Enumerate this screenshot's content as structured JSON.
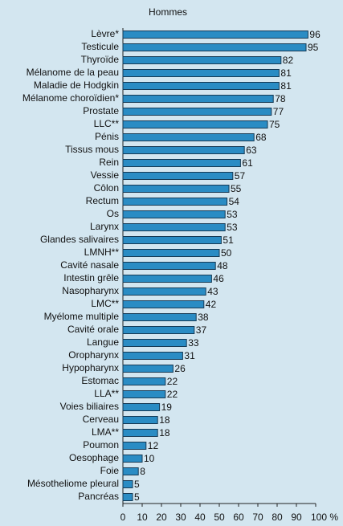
{
  "chart_data": {
    "type": "barh",
    "title": "Hommes",
    "categories": [
      "Lèvre*",
      "Testicule",
      "Thyroïde",
      "Mélanome de la peau",
      "Maladie de Hodgkin",
      "Mélanome choroïdien*",
      "Prostate",
      "LLC**",
      "Pénis",
      "Tissus mous",
      "Rein",
      "Vessie",
      "Côlon",
      "Rectum",
      "Os",
      "Larynx",
      "Glandes salivaires",
      "LMNH**",
      "Cavité nasale",
      "Intestin grêle",
      "Nasopharynx",
      "LMC**",
      "Myélome multiple",
      "Cavité orale",
      "Langue",
      "Oropharynx",
      "Hypopharynx",
      "Estomac",
      "LLA**",
      "Voies biliaires",
      "Cerveau",
      "LMA**",
      "Poumon",
      "Oesophage",
      "Foie",
      "Mésotheliome pleural",
      "Pancréas"
    ],
    "values": [
      96,
      95,
      82,
      81,
      81,
      78,
      77,
      75,
      68,
      63,
      61,
      57,
      55,
      54,
      53,
      53,
      51,
      50,
      48,
      46,
      43,
      42,
      38,
      37,
      33,
      31,
      26,
      22,
      22,
      19,
      18,
      18,
      12,
      10,
      8,
      5,
      5
    ],
    "color": "#2a8cc4",
    "xlim": [
      0,
      100
    ],
    "xticks": [
      0,
      10,
      20,
      30,
      40,
      50,
      60,
      70,
      80,
      90,
      {
        "value": 100,
        "label": "100 %"
      }
    ]
  }
}
